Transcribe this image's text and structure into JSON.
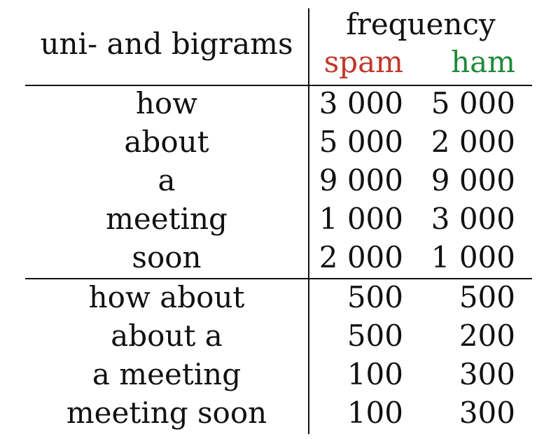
{
  "table": {
    "header": {
      "row_label": "uni- and bigrams",
      "frequency": "frequency",
      "spam": "spam",
      "ham": "ham",
      "spam_color": "#c0392b",
      "ham_color": "#1f8a3a"
    },
    "unigrams": [
      {
        "term": "how",
        "spam": "3 000",
        "ham": "5 000"
      },
      {
        "term": "about",
        "spam": "5 000",
        "ham": "2 000"
      },
      {
        "term": "a",
        "spam": "9 000",
        "ham": "9 000"
      },
      {
        "term": "meeting",
        "spam": "1 000",
        "ham": "3 000"
      },
      {
        "term": "soon",
        "spam": "2 000",
        "ham": "1 000"
      }
    ],
    "bigrams": [
      {
        "term": "how about",
        "spam": "500",
        "ham": "500"
      },
      {
        "term": "about a",
        "spam": "500",
        "ham": "200"
      },
      {
        "term": "a meeting",
        "spam": "100",
        "ham": "300"
      },
      {
        "term": "meeting soon",
        "spam": "100",
        "ham": "300"
      }
    ]
  }
}
